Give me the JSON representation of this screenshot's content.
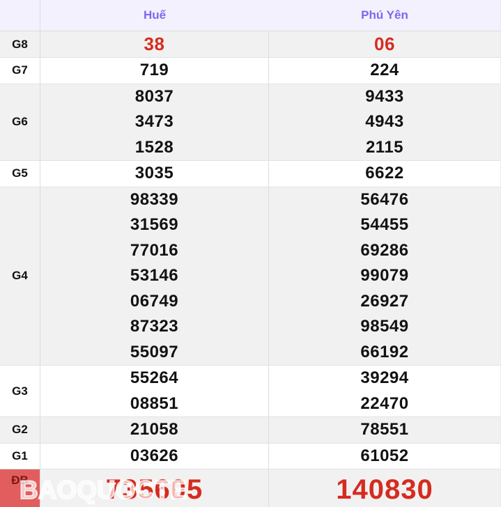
{
  "table": {
    "header": {
      "corner": "",
      "col1": "Huế",
      "col2": "Phú Yên"
    },
    "rows": [
      {
        "label": "G8",
        "hue": [
          "38"
        ],
        "phuyen": [
          "06"
        ],
        "shade": true,
        "red": true,
        "g8": true
      },
      {
        "label": "G7",
        "hue": [
          "719"
        ],
        "phuyen": [
          "224"
        ],
        "shade": false,
        "red": false
      },
      {
        "label": "G6",
        "hue": [
          "8037",
          "3473",
          "1528"
        ],
        "phuyen": [
          "9433",
          "4943",
          "2115"
        ],
        "shade": true,
        "red": false
      },
      {
        "label": "G5",
        "hue": [
          "3035"
        ],
        "phuyen": [
          "6622"
        ],
        "shade": false,
        "red": false
      },
      {
        "label": "G4",
        "hue": [
          "98339",
          "31569",
          "77016",
          "53146",
          "06749",
          "87323",
          "55097"
        ],
        "phuyen": [
          "56476",
          "54455",
          "69286",
          "99079",
          "26927",
          "98549",
          "66192"
        ],
        "shade": true,
        "red": false
      },
      {
        "label": "G3",
        "hue": [
          "55264",
          "08851"
        ],
        "phuyen": [
          "39294",
          "22470"
        ],
        "shade": false,
        "red": false
      },
      {
        "label": "G2",
        "hue": [
          "21058"
        ],
        "phuyen": [
          "78551"
        ],
        "shade": true,
        "red": false
      },
      {
        "label": "G1",
        "hue": [
          "03626"
        ],
        "phuyen": [
          "61052"
        ],
        "shade": false,
        "red": false
      },
      {
        "label": "ĐB",
        "hue": [
          "735605"
        ],
        "phuyen": [
          "140830"
        ],
        "shade": true,
        "red": true,
        "special": true
      }
    ]
  },
  "watermark": {
    "text": "BAOQUOCTE"
  },
  "colors": {
    "header_accent": "#7b68ee",
    "header_background": "#f3f1fe",
    "red_value": "#d62b1f",
    "special_label_background": "#e25d5d",
    "row_shade": "#f1f1f1",
    "number_color": "#121212"
  }
}
